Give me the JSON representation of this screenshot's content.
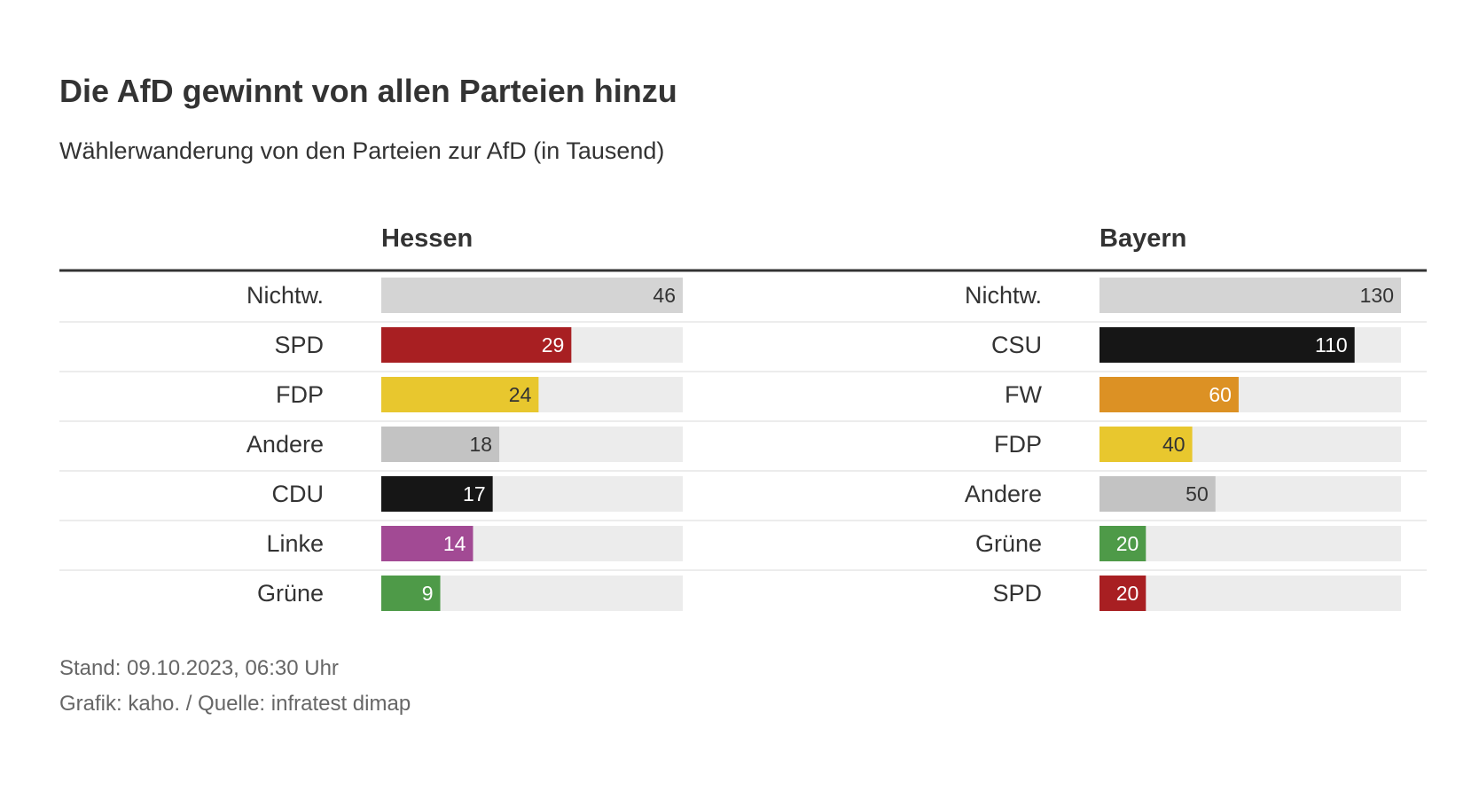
{
  "title": "Die AfD gewinnt von allen Parteien hinzu",
  "subtitle": "Wählerwanderung von den Parteien zur AfD (in Tausend)",
  "footer": {
    "stand": "Stand: 09.10.2023, 06:30 Uhr",
    "source": "Grafik: kaho. / Quelle: infratest dimap"
  },
  "colors": {
    "track": "#ececec",
    "rule": "#333333",
    "divider": "#e6e6e6",
    "label": "#333333"
  },
  "chart_data": [
    {
      "type": "bar",
      "title": "Hessen",
      "orientation": "horizontal",
      "xlim": [
        0,
        46
      ],
      "categories": [
        "Nichtw.",
        "SPD",
        "FDP",
        "Andere",
        "CDU",
        "Linke",
        "Grüne"
      ],
      "values": [
        46,
        29,
        24,
        18,
        17,
        14,
        9
      ],
      "colors": [
        "#d4d4d4",
        "#a81f22",
        "#e8c72e",
        "#c3c3c3",
        "#161616",
        "#a24a94",
        "#4e9a48"
      ],
      "label_colors": [
        "#333333",
        "#ffffff",
        "#333333",
        "#333333",
        "#ffffff",
        "#ffffff",
        "#ffffff"
      ]
    },
    {
      "type": "bar",
      "title": "Bayern",
      "orientation": "horizontal",
      "xlim": [
        0,
        130
      ],
      "categories": [
        "Nichtw.",
        "CSU",
        "FW",
        "FDP",
        "Andere",
        "Grüne",
        "SPD"
      ],
      "values": [
        130,
        110,
        60,
        40,
        50,
        20,
        20
      ],
      "colors": [
        "#d4d4d4",
        "#161616",
        "#dc9124",
        "#e8c72e",
        "#c3c3c3",
        "#4e9a48",
        "#a81f22"
      ],
      "label_colors": [
        "#333333",
        "#ffffff",
        "#ffffff",
        "#333333",
        "#333333",
        "#ffffff",
        "#ffffff"
      ]
    }
  ]
}
